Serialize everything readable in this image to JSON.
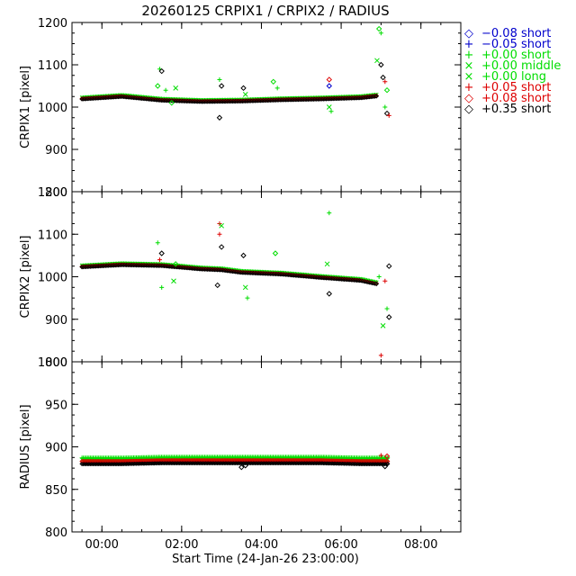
{
  "chart_data": {
    "type": "scatter",
    "title": "20260125 CRPIX1 / CRPIX2 / RADIUS",
    "xlabel": "Start Time (24-Jan-26 23:00:00)",
    "x_ticks": [
      "00:00",
      "02:00",
      "04:00",
      "06:00",
      "08:00"
    ],
    "x_range_hours": [
      -0.75,
      9.0
    ],
    "legend": [
      {
        "marker": "◇",
        "label": "−0.08 short",
        "color": "#0000cc"
      },
      {
        "marker": "+",
        "label": "−0.05 short",
        "color": "#0000cc"
      },
      {
        "marker": "+",
        "label": "+0.00 short",
        "color": "#00dd00"
      },
      {
        "marker": "×",
        "label": "+0.00 middle",
        "color": "#00dd00"
      },
      {
        "marker": "×",
        "label": "+0.00 long",
        "color": "#00dd00"
      },
      {
        "marker": "+",
        "label": "+0.05 short",
        "color": "#dd0000"
      },
      {
        "marker": "◇",
        "label": "+0.08 short",
        "color": "#dd0000"
      },
      {
        "marker": "◇",
        "label": "+0.35 short",
        "color": "#000000"
      }
    ],
    "panels": [
      {
        "ylabel": "CRPIX1 [pixel]",
        "ylim": [
          800,
          1200
        ],
        "yticks": [
          800,
          900,
          1000,
          1100,
          1200
        ],
        "trend": [
          [
            -0.5,
            1021
          ],
          [
            0.5,
            1027
          ],
          [
            1.5,
            1018
          ],
          [
            2.5,
            1015
          ],
          [
            3.5,
            1016
          ],
          [
            4.5,
            1019
          ],
          [
            5.5,
            1021
          ],
          [
            6.5,
            1024
          ],
          [
            6.9,
            1028
          ]
        ],
        "outliers": [
          {
            "x": 1.45,
            "y": 1090,
            "c": "g"
          },
          {
            "x": 1.5,
            "y": 1085,
            "c": "k"
          },
          {
            "x": 1.4,
            "y": 1050,
            "c": "g"
          },
          {
            "x": 1.6,
            "y": 1040,
            "c": "g"
          },
          {
            "x": 1.85,
            "y": 1045,
            "c": "g"
          },
          {
            "x": 1.75,
            "y": 1010,
            "c": "g"
          },
          {
            "x": 2.95,
            "y": 1065,
            "c": "g"
          },
          {
            "x": 3.0,
            "y": 1050,
            "c": "k"
          },
          {
            "x": 2.95,
            "y": 975,
            "c": "k"
          },
          {
            "x": 3.55,
            "y": 1045,
            "c": "k"
          },
          {
            "x": 3.6,
            "y": 1030,
            "c": "g"
          },
          {
            "x": 4.3,
            "y": 1060,
            "c": "g"
          },
          {
            "x": 4.4,
            "y": 1045,
            "c": "g"
          },
          {
            "x": 5.7,
            "y": 1065,
            "c": "r"
          },
          {
            "x": 5.7,
            "y": 1050,
            "c": "b"
          },
          {
            "x": 5.75,
            "y": 990,
            "c": "g"
          },
          {
            "x": 5.7,
            "y": 1000,
            "c": "g"
          },
          {
            "x": 6.95,
            "y": 1185,
            "c": "g"
          },
          {
            "x": 7.0,
            "y": 1175,
            "c": "g"
          },
          {
            "x": 6.9,
            "y": 1110,
            "c": "g"
          },
          {
            "x": 7.0,
            "y": 1100,
            "c": "k"
          },
          {
            "x": 7.05,
            "y": 1070,
            "c": "k"
          },
          {
            "x": 7.1,
            "y": 1060,
            "c": "r"
          },
          {
            "x": 7.15,
            "y": 1040,
            "c": "g"
          },
          {
            "x": 7.1,
            "y": 1000,
            "c": "g"
          },
          {
            "x": 7.15,
            "y": 985,
            "c": "k"
          },
          {
            "x": 7.2,
            "y": 980,
            "c": "r"
          }
        ]
      },
      {
        "ylabel": "CRPIX2 [pixel]",
        "ylim": [
          800,
          1200
        ],
        "yticks": [
          800,
          900,
          1000,
          1100,
          1200
        ],
        "trend": [
          [
            -0.5,
            1025
          ],
          [
            0.5,
            1030
          ],
          [
            1.5,
            1028
          ],
          [
            2.5,
            1020
          ],
          [
            3.0,
            1018
          ],
          [
            3.5,
            1012
          ],
          [
            4.5,
            1008
          ],
          [
            5.5,
            1000
          ],
          [
            6.5,
            993
          ],
          [
            6.9,
            985
          ]
        ],
        "outliers": [
          {
            "x": 1.4,
            "y": 1080,
            "c": "g"
          },
          {
            "x": 1.5,
            "y": 1055,
            "c": "k"
          },
          {
            "x": 1.45,
            "y": 1040,
            "c": "r"
          },
          {
            "x": 1.5,
            "y": 975,
            "c": "g"
          },
          {
            "x": 1.8,
            "y": 990,
            "c": "g"
          },
          {
            "x": 1.85,
            "y": 1030,
            "c": "g"
          },
          {
            "x": 2.95,
            "y": 1125,
            "c": "r"
          },
          {
            "x": 3.0,
            "y": 1120,
            "c": "g"
          },
          {
            "x": 2.95,
            "y": 1100,
            "c": "r"
          },
          {
            "x": 3.0,
            "y": 1070,
            "c": "k"
          },
          {
            "x": 2.9,
            "y": 980,
            "c": "k"
          },
          {
            "x": 3.55,
            "y": 1050,
            "c": "k"
          },
          {
            "x": 3.65,
            "y": 950,
            "c": "g"
          },
          {
            "x": 3.6,
            "y": 975,
            "c": "g"
          },
          {
            "x": 4.35,
            "y": 1055,
            "c": "g"
          },
          {
            "x": 5.7,
            "y": 1150,
            "c": "g"
          },
          {
            "x": 5.65,
            "y": 1030,
            "c": "g"
          },
          {
            "x": 5.7,
            "y": 960,
            "c": "k"
          },
          {
            "x": 6.95,
            "y": 1000,
            "c": "g"
          },
          {
            "x": 7.05,
            "y": 885,
            "c": "g"
          },
          {
            "x": 7.0,
            "y": 815,
            "c": "r"
          },
          {
            "x": 7.15,
            "y": 925,
            "c": "g"
          },
          {
            "x": 7.2,
            "y": 905,
            "c": "k"
          },
          {
            "x": 7.2,
            "y": 1025,
            "c": "k"
          },
          {
            "x": 7.1,
            "y": 990,
            "c": "r"
          }
        ]
      },
      {
        "ylabel": "RADIUS [pixel]",
        "ylim": [
          800,
          1000
        ],
        "yticks": [
          800,
          850,
          900,
          950,
          1000
        ],
        "trend": [
          [
            -0.5,
            884
          ],
          [
            0.5,
            884
          ],
          [
            1.5,
            885
          ],
          [
            2.5,
            885
          ],
          [
            3.5,
            885
          ],
          [
            4.5,
            885
          ],
          [
            5.5,
            885
          ],
          [
            6.5,
            884
          ],
          [
            7.2,
            884
          ]
        ],
        "outliers": [
          {
            "x": 3.5,
            "y": 876,
            "c": "k"
          },
          {
            "x": 3.6,
            "y": 878,
            "c": "k"
          },
          {
            "x": 7.0,
            "y": 890,
            "c": "r"
          },
          {
            "x": 7.15,
            "y": 889,
            "c": "r"
          },
          {
            "x": 7.1,
            "y": 877,
            "c": "k"
          }
        ]
      }
    ]
  }
}
